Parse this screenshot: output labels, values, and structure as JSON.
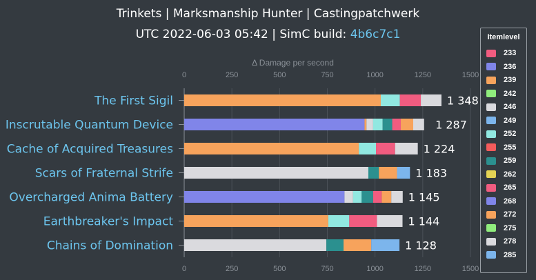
{
  "title": {
    "line1": "Trinkets | Marksmanship Hunter | Castingpatchwerk",
    "line2_prefix": "UTC 2022-06-03 05:42 | SimC build: ",
    "build_sha": "4b6c7c1"
  },
  "legend": {
    "title": "Itemlevel",
    "items": [
      {
        "label": "233",
        "color": "#f15c80"
      },
      {
        "label": "236",
        "color": "#8085e9"
      },
      {
        "label": "239",
        "color": "#f7a35c"
      },
      {
        "label": "242",
        "color": "#90ed7d"
      },
      {
        "label": "246",
        "color": "#dadade"
      },
      {
        "label": "249",
        "color": "#7cb5ec"
      },
      {
        "label": "252",
        "color": "#91e8e1"
      },
      {
        "label": "255",
        "color": "#f45b5b"
      },
      {
        "label": "259",
        "color": "#2b908f"
      },
      {
        "label": "262",
        "color": "#e4d354"
      },
      {
        "label": "265",
        "color": "#f15c80"
      },
      {
        "label": "268",
        "color": "#8085e9"
      },
      {
        "label": "272",
        "color": "#f7a35c"
      },
      {
        "label": "275",
        "color": "#90ed7d"
      },
      {
        "label": "278",
        "color": "#dadade"
      },
      {
        "label": "285",
        "color": "#7cb5ec"
      }
    ]
  },
  "chart_data": {
    "type": "bar",
    "orientation": "horizontal",
    "stacked": true,
    "xlabel": "Δ Damage per second",
    "xlim": [
      0,
      1500
    ],
    "xticks": [
      0,
      250,
      500,
      750,
      1000,
      1250,
      1500
    ],
    "xtick_labels": [
      "0",
      "250",
      "500",
      "750",
      "1000",
      "1250",
      "1500"
    ],
    "categories": [
      "The First Sigil",
      "Inscrutable Quantum Device",
      "Cache of Acquired Treasures",
      "Scars of Fraternal Strife",
      "Overcharged Anima Battery",
      "Earthbreaker's Impact",
      "Chains of Domination"
    ],
    "totals": [
      1348,
      1287,
      1224,
      1183,
      1145,
      1144,
      1128
    ],
    "total_labels": [
      "1 348",
      "1 287",
      "1 224",
      "1 183",
      "1 145",
      "1 144",
      "1 128"
    ],
    "bars": [
      {
        "segments": [
          {
            "itemlevel": "272",
            "value": 1030
          },
          {
            "itemlevel": "252",
            "value": 100
          },
          {
            "itemlevel": "265",
            "value": 110
          },
          {
            "itemlevel": "278",
            "value": 108
          }
        ]
      },
      {
        "segments": [
          {
            "itemlevel": "268",
            "value": 945
          },
          {
            "itemlevel": "272",
            "value": 10
          },
          {
            "itemlevel": "246",
            "value": 35
          },
          {
            "itemlevel": "252",
            "value": 50
          },
          {
            "itemlevel": "259",
            "value": 50
          },
          {
            "itemlevel": "265",
            "value": 45
          },
          {
            "itemlevel": "239",
            "value": 65
          },
          {
            "itemlevel": "278",
            "value": 57
          }
        ]
      },
      {
        "segments": [
          {
            "itemlevel": "272",
            "value": 915
          },
          {
            "itemlevel": "252",
            "value": 90
          },
          {
            "itemlevel": "265",
            "value": 100
          },
          {
            "itemlevel": "278",
            "value": 119
          }
        ]
      },
      {
        "segments": [
          {
            "itemlevel": "278",
            "value": 965
          },
          {
            "itemlevel": "259",
            "value": 55
          },
          {
            "itemlevel": "272",
            "value": 95
          },
          {
            "itemlevel": "285",
            "value": 68
          }
        ]
      },
      {
        "segments": [
          {
            "itemlevel": "268",
            "value": 840
          },
          {
            "itemlevel": "246",
            "value": 45
          },
          {
            "itemlevel": "252",
            "value": 45
          },
          {
            "itemlevel": "259",
            "value": 60
          },
          {
            "itemlevel": "265",
            "value": 45
          },
          {
            "itemlevel": "239",
            "value": 50
          },
          {
            "itemlevel": "278",
            "value": 60
          }
        ]
      },
      {
        "segments": [
          {
            "itemlevel": "272",
            "value": 755
          },
          {
            "itemlevel": "252",
            "value": 110
          },
          {
            "itemlevel": "265",
            "value": 145
          },
          {
            "itemlevel": "278",
            "value": 134
          }
        ]
      },
      {
        "segments": [
          {
            "itemlevel": "278",
            "value": 745
          },
          {
            "itemlevel": "259",
            "value": 90
          },
          {
            "itemlevel": "272",
            "value": 145
          },
          {
            "itemlevel": "285",
            "value": 148
          }
        ]
      }
    ],
    "colors": {
      "category_label": "#6cc5ee",
      "axis": "#8a9097",
      "grid": "#4a5057",
      "total_label": "#ffffff"
    }
  }
}
